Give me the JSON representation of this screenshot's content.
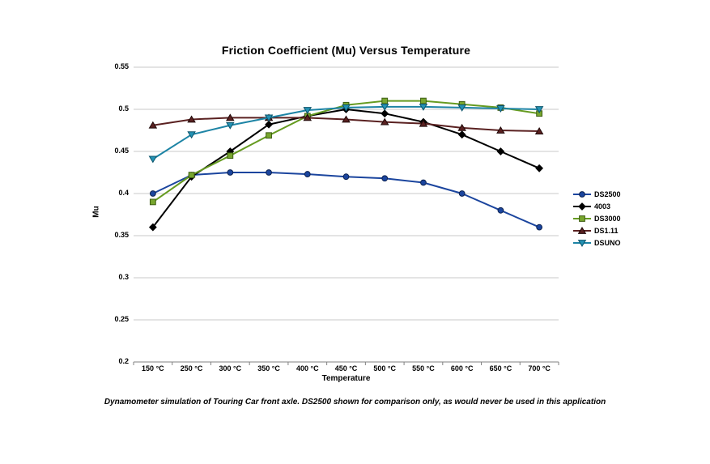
{
  "caption": "Dynamometer simulation of Touring Car front axle. DS2500 shown for comparison only, as would never be used in this application",
  "chart_data": {
    "type": "line",
    "title": "Friction Coefficient (Mu) Versus Temperature",
    "xlabel": "Temperature",
    "ylabel": "Mu",
    "categories": [
      "150 °C",
      "250 °C",
      "300 °C",
      "350 °C",
      "400 °C",
      "450 °C",
      "500 °C",
      "550 °C",
      "600 °C",
      "650 °C",
      "700 °C"
    ],
    "series": [
      {
        "name": "DS2500",
        "marker": "circle",
        "line": "#1B459E",
        "fill": "#1B459E",
        "edge": "#0D2250",
        "values": [
          0.4,
          0.422,
          0.425,
          0.425,
          0.423,
          0.42,
          0.418,
          0.413,
          0.4,
          0.38,
          0.36
        ]
      },
      {
        "name": "4003",
        "marker": "diamond",
        "line": "#000000",
        "fill": "#000000",
        "edge": "#000000",
        "values": [
          0.36,
          0.42,
          0.45,
          0.482,
          0.492,
          0.5,
          0.495,
          0.485,
          0.47,
          0.45,
          0.43
        ]
      },
      {
        "name": "DS3000",
        "marker": "square",
        "line": "#669B21",
        "fill": "#77A62E",
        "edge": "#3D5C13",
        "values": [
          0.39,
          0.422,
          0.445,
          0.469,
          0.492,
          0.505,
          0.51,
          0.51,
          0.506,
          0.502,
          0.495
        ]
      },
      {
        "name": "DS1.11",
        "marker": "triangle-up",
        "line": "#5A2121",
        "fill": "#5A2121",
        "edge": "#1E0808",
        "values": [
          0.481,
          0.488,
          0.49,
          0.49,
          0.49,
          0.488,
          0.485,
          0.483,
          0.478,
          0.475,
          0.474
        ]
      },
      {
        "name": "DSUNO",
        "marker": "triangle-down",
        "line": "#1D84A5",
        "fill": "#2492B4",
        "edge": "#0C546B",
        "values": [
          0.441,
          0.47,
          0.481,
          0.49,
          0.499,
          0.502,
          0.503,
          0.503,
          0.502,
          0.501,
          0.5
        ]
      }
    ],
    "ylim": [
      0.2,
      0.55
    ],
    "yticks": [
      {
        "v": 0.2,
        "label": "0.2"
      },
      {
        "v": 0.25,
        "label": "0.25"
      },
      {
        "v": 0.3,
        "label": "0.3"
      },
      {
        "v": 0.35,
        "label": "0.35"
      },
      {
        "v": 0.4,
        "label": "0.4"
      },
      {
        "v": 0.45,
        "label": "0.45"
      },
      {
        "v": 0.5,
        "label": "0.5"
      },
      {
        "v": 0.55,
        "label": "0.55"
      }
    ],
    "grid": "horizontal",
    "legend_position": "right",
    "colors": {
      "background": "#FFFFFF",
      "gridline": "#C9C9C9",
      "axis": "#808080",
      "text": "#000000"
    }
  }
}
